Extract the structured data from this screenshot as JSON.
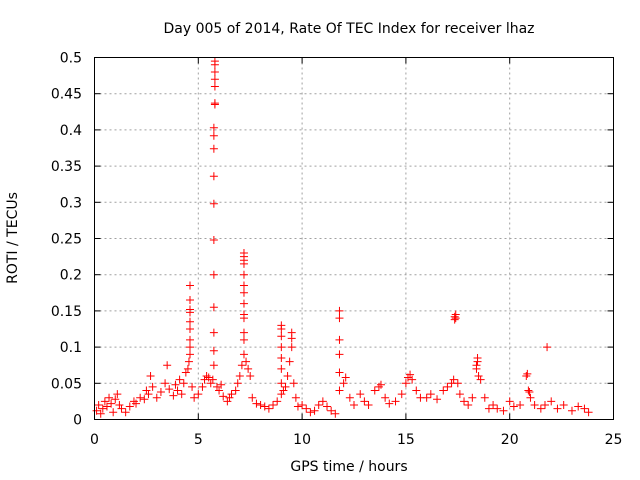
{
  "chart_data": {
    "type": "scatter",
    "title": "Day 005 of 2014, Rate Of TEC Index for receiver lhaz",
    "xlabel": "GPS time / hours",
    "ylabel": "ROTI / TECUs",
    "xlim": [
      0,
      25
    ],
    "ylim": [
      0,
      0.5
    ],
    "xticks": [
      "0",
      "5",
      "10",
      "15",
      "20",
      "25"
    ],
    "xtick_values": [
      0,
      5,
      10,
      15,
      20,
      25
    ],
    "yticks": [
      "0",
      "0.05",
      "0.1",
      "0.15",
      "0.2",
      "0.25",
      "0.3",
      "0.35",
      "0.4",
      "0.45",
      "0.5"
    ],
    "ytick_values": [
      0,
      0.05,
      0.1,
      0.15,
      0.2,
      0.25,
      0.3,
      0.35,
      0.4,
      0.45,
      0.5
    ],
    "grid": true,
    "marker": "plus",
    "color": "#ff0000",
    "series": [
      {
        "name": "ROTI",
        "points": [
          [
            0.1,
            0.012
          ],
          [
            0.2,
            0.02
          ],
          [
            0.3,
            0.008
          ],
          [
            0.4,
            0.015
          ],
          [
            0.5,
            0.025
          ],
          [
            0.6,
            0.018
          ],
          [
            0.7,
            0.03
          ],
          [
            0.8,
            0.022
          ],
          [
            0.9,
            0.01
          ],
          [
            1.0,
            0.028
          ],
          [
            1.1,
            0.035
          ],
          [
            1.2,
            0.02
          ],
          [
            1.3,
            0.015
          ],
          [
            1.5,
            0.01
          ],
          [
            1.7,
            0.018
          ],
          [
            1.9,
            0.025
          ],
          [
            2.0,
            0.022
          ],
          [
            2.2,
            0.03
          ],
          [
            2.4,
            0.028
          ],
          [
            2.5,
            0.04
          ],
          [
            2.6,
            0.035
          ],
          [
            2.7,
            0.06
          ],
          [
            2.8,
            0.045
          ],
          [
            3.0,
            0.03
          ],
          [
            3.2,
            0.038
          ],
          [
            3.4,
            0.05
          ],
          [
            3.5,
            0.075
          ],
          [
            3.6,
            0.042
          ],
          [
            3.8,
            0.033
          ],
          [
            3.9,
            0.048
          ],
          [
            4.0,
            0.04
          ],
          [
            4.1,
            0.055
          ],
          [
            4.2,
            0.035
          ],
          [
            4.3,
            0.05
          ],
          [
            4.4,
            0.065
          ],
          [
            4.5,
            0.07
          ],
          [
            4.55,
            0.08
          ],
          [
            4.6,
            0.09
          ],
          [
            4.6,
            0.1
          ],
          [
            4.6,
            0.11
          ],
          [
            4.6,
            0.125
          ],
          [
            4.6,
            0.135
          ],
          [
            4.6,
            0.148
          ],
          [
            4.6,
            0.152
          ],
          [
            4.6,
            0.165
          ],
          [
            4.6,
            0.185
          ],
          [
            4.7,
            0.045
          ],
          [
            4.8,
            0.03
          ],
          [
            5.0,
            0.035
          ],
          [
            5.2,
            0.045
          ],
          [
            5.3,
            0.055
          ],
          [
            5.4,
            0.06
          ],
          [
            5.5,
            0.058
          ],
          [
            5.6,
            0.05
          ],
          [
            5.7,
            0.055
          ],
          [
            5.75,
            0.075
          ],
          [
            5.75,
            0.095
          ],
          [
            5.75,
            0.12
          ],
          [
            5.75,
            0.155
          ],
          [
            5.75,
            0.2
          ],
          [
            5.75,
            0.248
          ],
          [
            5.75,
            0.298
          ],
          [
            5.75,
            0.336
          ],
          [
            5.75,
            0.374
          ],
          [
            5.75,
            0.392
          ],
          [
            5.75,
            0.403
          ],
          [
            5.8,
            0.435
          ],
          [
            5.8,
            0.437
          ],
          [
            5.8,
            0.46
          ],
          [
            5.8,
            0.47
          ],
          [
            5.8,
            0.48
          ],
          [
            5.8,
            0.49
          ],
          [
            5.8,
            0.495
          ],
          [
            5.9,
            0.045
          ],
          [
            6.0,
            0.04
          ],
          [
            6.1,
            0.048
          ],
          [
            6.2,
            0.032
          ],
          [
            6.4,
            0.025
          ],
          [
            6.5,
            0.03
          ],
          [
            6.6,
            0.035
          ],
          [
            6.8,
            0.04
          ],
          [
            6.9,
            0.05
          ],
          [
            7.0,
            0.06
          ],
          [
            7.1,
            0.075
          ],
          [
            7.2,
            0.09
          ],
          [
            7.2,
            0.11
          ],
          [
            7.2,
            0.12
          ],
          [
            7.2,
            0.14
          ],
          [
            7.2,
            0.145
          ],
          [
            7.2,
            0.16
          ],
          [
            7.2,
            0.175
          ],
          [
            7.2,
            0.185
          ],
          [
            7.2,
            0.2
          ],
          [
            7.2,
            0.215
          ],
          [
            7.2,
            0.22
          ],
          [
            7.2,
            0.225
          ],
          [
            7.2,
            0.23
          ],
          [
            7.3,
            0.08
          ],
          [
            7.4,
            0.07
          ],
          [
            7.5,
            0.06
          ],
          [
            7.6,
            0.03
          ],
          [
            7.8,
            0.022
          ],
          [
            8.0,
            0.02
          ],
          [
            8.2,
            0.018
          ],
          [
            8.4,
            0.015
          ],
          [
            8.6,
            0.02
          ],
          [
            8.8,
            0.025
          ],
          [
            9.0,
            0.035
          ],
          [
            9.0,
            0.05
          ],
          [
            9.0,
            0.07
          ],
          [
            9.0,
            0.085
          ],
          [
            9.0,
            0.1
          ],
          [
            9.0,
            0.115
          ],
          [
            9.0,
            0.125
          ],
          [
            9.0,
            0.13
          ],
          [
            9.1,
            0.04
          ],
          [
            9.2,
            0.045
          ],
          [
            9.3,
            0.06
          ],
          [
            9.4,
            0.08
          ],
          [
            9.5,
            0.1
          ],
          [
            9.5,
            0.112
          ],
          [
            9.5,
            0.12
          ],
          [
            9.6,
            0.05
          ],
          [
            9.7,
            0.03
          ],
          [
            9.8,
            0.018
          ],
          [
            10.0,
            0.02
          ],
          [
            10.2,
            0.015
          ],
          [
            10.4,
            0.01
          ],
          [
            10.6,
            0.012
          ],
          [
            10.8,
            0.02
          ],
          [
            11.0,
            0.025
          ],
          [
            11.2,
            0.018
          ],
          [
            11.4,
            0.012
          ],
          [
            11.6,
            0.008
          ],
          [
            11.8,
            0.04
          ],
          [
            11.8,
            0.065
          ],
          [
            11.8,
            0.09
          ],
          [
            11.8,
            0.11
          ],
          [
            11.8,
            0.14
          ],
          [
            11.8,
            0.15
          ],
          [
            12.0,
            0.05
          ],
          [
            12.1,
            0.058
          ],
          [
            12.3,
            0.03
          ],
          [
            12.5,
            0.02
          ],
          [
            12.8,
            0.035
          ],
          [
            13.0,
            0.025
          ],
          [
            13.2,
            0.02
          ],
          [
            13.5,
            0.04
          ],
          [
            13.7,
            0.045
          ],
          [
            13.8,
            0.048
          ],
          [
            14.0,
            0.03
          ],
          [
            14.2,
            0.022
          ],
          [
            14.5,
            0.025
          ],
          [
            14.8,
            0.035
          ],
          [
            15.0,
            0.05
          ],
          [
            15.1,
            0.058
          ],
          [
            15.2,
            0.062
          ],
          [
            15.3,
            0.055
          ],
          [
            15.5,
            0.04
          ],
          [
            15.7,
            0.03
          ],
          [
            16.0,
            0.03
          ],
          [
            16.2,
            0.035
          ],
          [
            16.5,
            0.028
          ],
          [
            16.8,
            0.04
          ],
          [
            17.0,
            0.045
          ],
          [
            17.2,
            0.05
          ],
          [
            17.3,
            0.055
          ],
          [
            17.35,
            0.138
          ],
          [
            17.35,
            0.142
          ],
          [
            17.4,
            0.14
          ],
          [
            17.4,
            0.145
          ],
          [
            17.5,
            0.05
          ],
          [
            17.6,
            0.035
          ],
          [
            17.8,
            0.025
          ],
          [
            18.0,
            0.02
          ],
          [
            18.2,
            0.03
          ],
          [
            18.4,
            0.07
          ],
          [
            18.4,
            0.075
          ],
          [
            18.45,
            0.08
          ],
          [
            18.45,
            0.085
          ],
          [
            18.5,
            0.06
          ],
          [
            18.6,
            0.055
          ],
          [
            18.8,
            0.03
          ],
          [
            19.0,
            0.015
          ],
          [
            19.2,
            0.02
          ],
          [
            19.4,
            0.015
          ],
          [
            19.7,
            0.012
          ],
          [
            20.0,
            0.025
          ],
          [
            20.2,
            0.018
          ],
          [
            20.5,
            0.02
          ],
          [
            20.8,
            0.06
          ],
          [
            20.85,
            0.063
          ],
          [
            20.9,
            0.04
          ],
          [
            20.95,
            0.038
          ],
          [
            21.0,
            0.03
          ],
          [
            21.2,
            0.02
          ],
          [
            21.5,
            0.015
          ],
          [
            21.7,
            0.02
          ],
          [
            21.8,
            0.1
          ],
          [
            22.0,
            0.025
          ],
          [
            22.3,
            0.015
          ],
          [
            22.6,
            0.02
          ],
          [
            23.0,
            0.012
          ],
          [
            23.3,
            0.018
          ],
          [
            23.6,
            0.015
          ],
          [
            23.8,
            0.01
          ]
        ]
      }
    ]
  }
}
